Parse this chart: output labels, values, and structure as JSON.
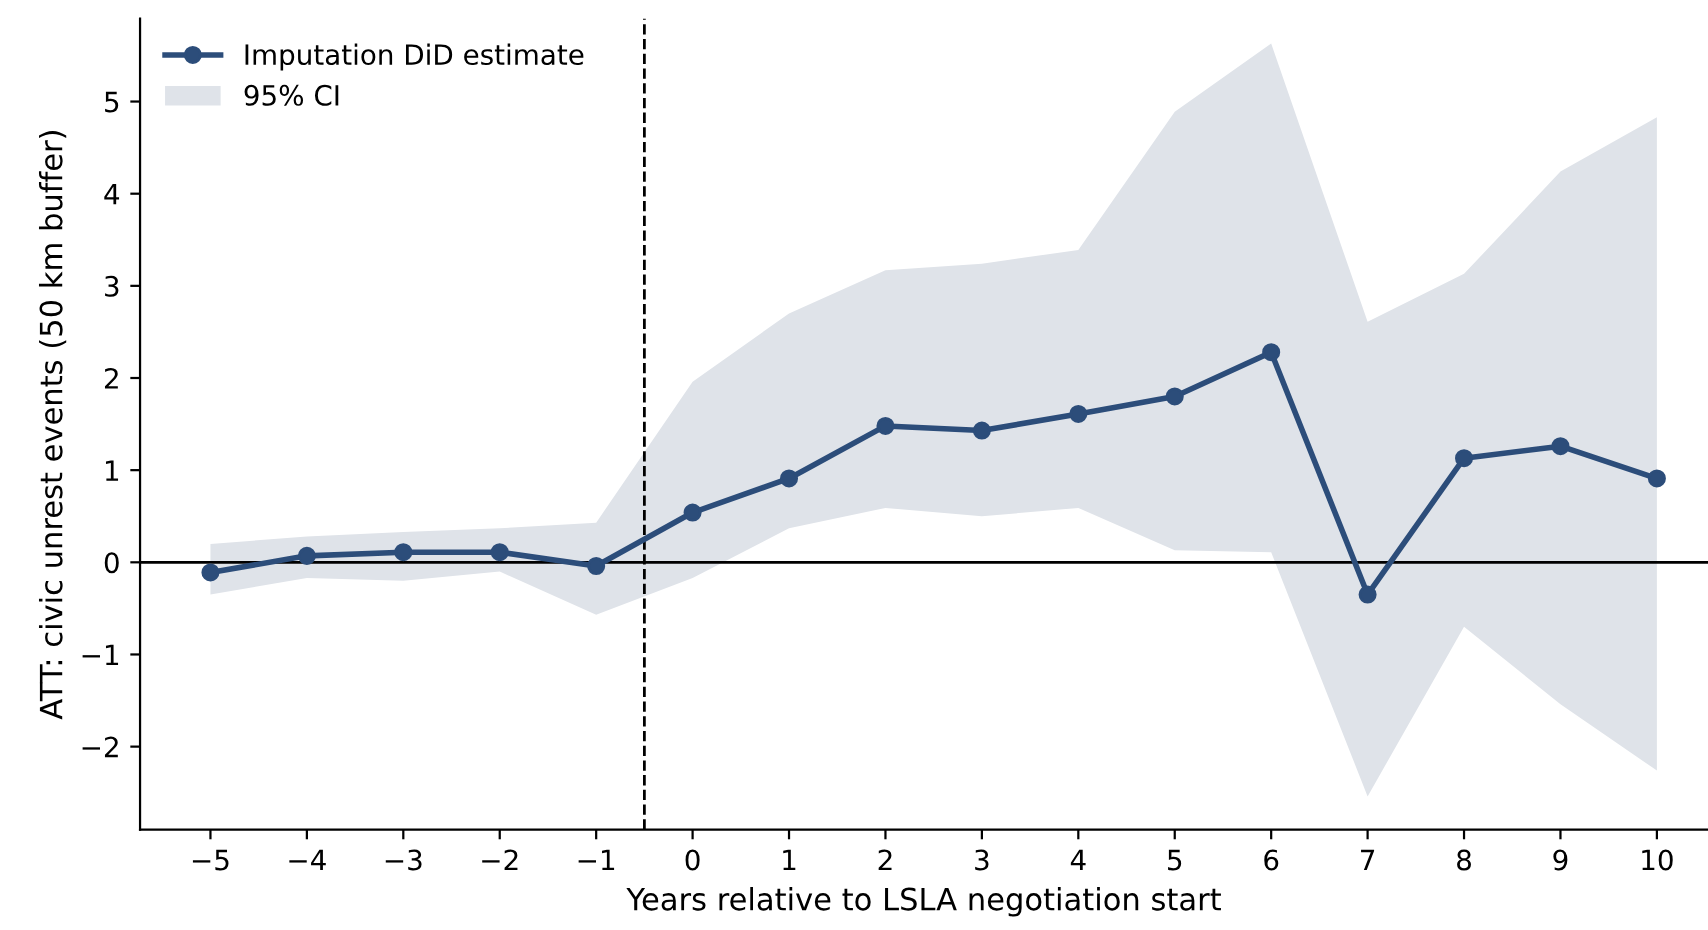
{
  "chart_data": {
    "type": "line",
    "xlabel": "Years relative to LSLA negotiation start",
    "ylabel": "ATT: civic unrest events (50 km buffer)",
    "x": [
      -5,
      -4,
      -3,
      -2,
      -1,
      0,
      1,
      2,
      3,
      4,
      5,
      6,
      7,
      8,
      9,
      10
    ],
    "series": [
      {
        "name": "Imputation DiD estimate",
        "color": "#2c4d7a",
        "values": [
          -0.11,
          0.07,
          0.11,
          0.11,
          -0.04,
          0.54,
          0.91,
          1.48,
          1.43,
          1.61,
          1.8,
          2.28,
          -0.35,
          1.13,
          1.26,
          0.91
        ],
        "upper": [
          0.2,
          0.28,
          0.33,
          0.37,
          0.43,
          1.96,
          2.7,
          3.17,
          3.24,
          3.39,
          4.89,
          5.63,
          2.61,
          3.13,
          4.24,
          4.83
        ],
        "lower": [
          -0.35,
          -0.17,
          -0.2,
          -0.1,
          -0.57,
          -0.17,
          0.37,
          0.59,
          0.5,
          0.59,
          0.13,
          0.11,
          -2.54,
          -0.7,
          -1.54,
          -2.26
        ]
      }
    ],
    "annotations": [
      "95% CI"
    ],
    "xlim": [
      -5.73,
      10.53
    ],
    "ylim": [
      -2.9,
      5.9
    ],
    "xticks": [
      {
        "value": -5,
        "label": "−5"
      },
      {
        "value": -4,
        "label": "−4"
      },
      {
        "value": -3,
        "label": "−3"
      },
      {
        "value": -2,
        "label": "−2"
      },
      {
        "value": -1,
        "label": "−1"
      },
      0,
      1,
      2,
      3,
      4,
      5,
      6,
      7,
      8,
      9,
      10
    ],
    "yticks": [
      {
        "value": -2,
        "label": "−2"
      },
      {
        "value": -1,
        "label": "−1"
      },
      0,
      1,
      2,
      3,
      4,
      5
    ],
    "ref_lines": [
      {
        "axis": "y",
        "value": 0,
        "color": "#000000",
        "line_style": "solid"
      },
      {
        "axis": "x",
        "value": -0.5,
        "color": "#000000",
        "line_style": "dashed"
      }
    ],
    "marker": "circle",
    "line_style": "solid",
    "grid": false,
    "legend": "top left"
  }
}
